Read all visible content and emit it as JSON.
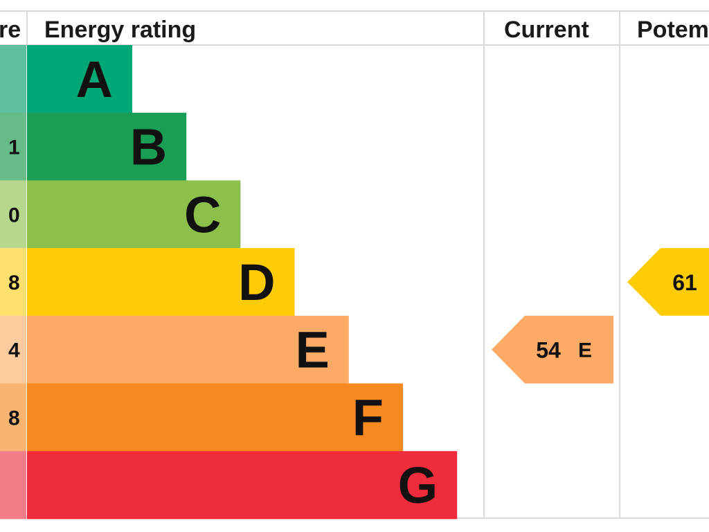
{
  "chart_data": {
    "type": "bar",
    "header": {
      "score_partial": "re",
      "title": "Energy rating",
      "current": "Current",
      "potential_partial": "Potem"
    },
    "bands": [
      {
        "letter": "A",
        "score_partial": "",
        "color": "#00a877",
        "score_color": "#5fbfa3"
      },
      {
        "letter": "B",
        "score_partial": "1",
        "color": "#1a9e55",
        "score_color": "#66bb88"
      },
      {
        "letter": "C",
        "score_partial": "0",
        "color": "#8cc04a",
        "score_color": "#b6d78d"
      },
      {
        "letter": "D",
        "score_partial": "8",
        "color": "#ffcb05",
        "score_color": "#ffdf6e"
      },
      {
        "letter": "E",
        "score_partial": "4",
        "color": "#fcaa65",
        "score_color": "#fdcc9e"
      },
      {
        "letter": "F",
        "score_partial": "8",
        "color": "#f68a20",
        "score_color": "#f9b472"
      },
      {
        "letter": "G",
        "score_partial": "",
        "color": "#ef2b3c",
        "score_color": "#f27d89"
      }
    ],
    "current": {
      "value": "54",
      "letter": "E",
      "band": "E",
      "color": "#fcaa65"
    },
    "potential": {
      "value": "61",
      "letter": "D",
      "band": "D",
      "color": "#ffcb05"
    }
  }
}
